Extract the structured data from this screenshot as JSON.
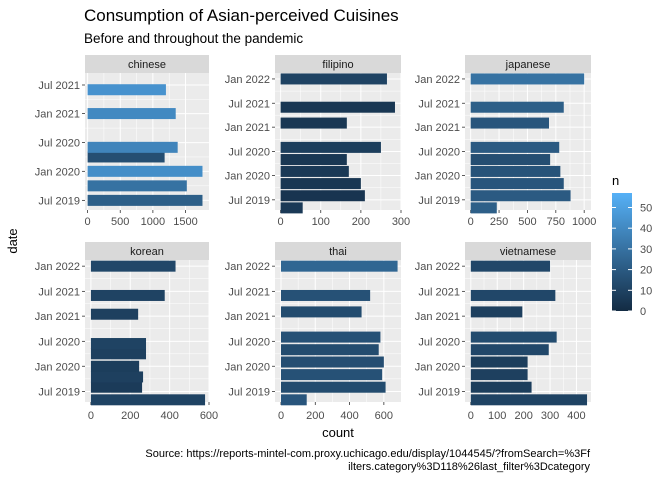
{
  "title": "Consumption of Asian-perceived Cuisines",
  "subtitle": "Before and throughout the pandemic",
  "caption_lines": [
    "Source: https://reports-mintel-com.proxy.uchicago.edu/display/1044545/?fromSearch=%3Ff",
    "ilters.category%3D118%26last_filter%3Dcategory"
  ],
  "colors": {
    "low": "#132B43",
    "high": "#56B1F7",
    "panel": "#EBEBEB",
    "grid": "#FFFFFF",
    "strip": "#D9D9D9"
  },
  "chart_data": {
    "type": "bar",
    "orientation": "horizontal",
    "facet_by": "cuisine",
    "facet_scales": "free",
    "xlabel": "count",
    "ylabel": "date",
    "fill_legend": {
      "title": "n",
      "range": [
        0,
        57
      ],
      "breaks": [
        0,
        10,
        20,
        30,
        40,
        50
      ]
    },
    "grid": true,
    "legend_position": "right",
    "panels": [
      {
        "name": "chinese",
        "xlim": [
          -40,
          1860
        ],
        "xticks": [
          0,
          500,
          1000,
          1500
        ],
        "ylim": [
          "2019-05-01",
          "2021-09-15"
        ],
        "yticks": [
          {
            "label": "Jul 2019",
            "date": "2019-07-01"
          },
          {
            "label": "Jan 2020",
            "date": "2020-01-01"
          },
          {
            "label": "Jul 2020",
            "date": "2020-07-01"
          },
          {
            "label": "Jan 2021",
            "date": "2021-01-01"
          },
          {
            "label": "Jul 2021",
            "date": "2021-07-01"
          }
        ],
        "bars": [
          {
            "date": "2019-07-01",
            "count": 1760,
            "n_mean": 22
          },
          {
            "date": "2019-10-01",
            "count": 1520,
            "n_mean": 30
          },
          {
            "date": "2020-01-01",
            "count": 1760,
            "n_mean": 42
          },
          {
            "date": "2020-04-01",
            "count": 1180,
            "n_mean": 15
          },
          {
            "date": "2020-06-01",
            "count": 1380,
            "n_mean": 38
          },
          {
            "date": "2021-01-01",
            "count": 1350,
            "n_mean": 40
          },
          {
            "date": "2021-06-01",
            "count": 1200,
            "n_mean": 44
          }
        ]
      },
      {
        "name": "filipino",
        "xlim": [
          -14,
          300
        ],
        "xticks": [
          0,
          100,
          200,
          300
        ],
        "ylim": [
          "2019-04-15",
          "2022-02-15"
        ],
        "yticks": [
          {
            "label": "Jul 2019",
            "date": "2019-07-01"
          },
          {
            "label": "Jan 2020",
            "date": "2020-01-01"
          },
          {
            "label": "Jul 2020",
            "date": "2020-07-01"
          },
          {
            "label": "Jan 2021",
            "date": "2021-01-01"
          },
          {
            "label": "Jul 2021",
            "date": "2021-07-01"
          },
          {
            "label": "Jan 2022",
            "date": "2022-01-01"
          }
        ],
        "bars": [
          {
            "date": "2019-05-01",
            "count": 55,
            "n_mean": 6
          },
          {
            "date": "2019-08-01",
            "count": 210,
            "n_mean": 4
          },
          {
            "date": "2019-11-01",
            "count": 200,
            "n_mean": 5
          },
          {
            "date": "2020-02-01",
            "count": 170,
            "n_mean": 6
          },
          {
            "date": "2020-05-01",
            "count": 165,
            "n_mean": 5
          },
          {
            "date": "2020-08-01",
            "count": 250,
            "n_mean": 8
          },
          {
            "date": "2021-02-01",
            "count": 165,
            "n_mean": 5
          },
          {
            "date": "2021-06-01",
            "count": 285,
            "n_mean": 5
          },
          {
            "date": "2022-01-01",
            "count": 265,
            "n_mean": 10
          }
        ]
      },
      {
        "name": "japanese",
        "xlim": [
          -50,
          1060
        ],
        "xticks": [
          0,
          250,
          500,
          750,
          1000
        ],
        "ylim": [
          "2019-04-15",
          "2022-02-15"
        ],
        "yticks": [
          {
            "label": "Jul 2019",
            "date": "2019-07-01"
          },
          {
            "label": "Jan 2020",
            "date": "2020-01-01"
          },
          {
            "label": "Jul 2020",
            "date": "2020-07-01"
          },
          {
            "label": "Jan 2021",
            "date": "2021-01-01"
          },
          {
            "label": "Jul 2021",
            "date": "2021-07-01"
          },
          {
            "label": "Jan 2022",
            "date": "2022-01-01"
          }
        ],
        "bars": [
          {
            "date": "2019-05-01",
            "count": 230,
            "n_mean": 22
          },
          {
            "date": "2019-08-01",
            "count": 880,
            "n_mean": 20
          },
          {
            "date": "2019-11-01",
            "count": 820,
            "n_mean": 18
          },
          {
            "date": "2020-02-01",
            "count": 790,
            "n_mean": 17
          },
          {
            "date": "2020-05-01",
            "count": 700,
            "n_mean": 15
          },
          {
            "date": "2020-08-01",
            "count": 780,
            "n_mean": 20
          },
          {
            "date": "2021-02-01",
            "count": 690,
            "n_mean": 18
          },
          {
            "date": "2021-06-01",
            "count": 820,
            "n_mean": 22
          },
          {
            "date": "2022-01-01",
            "count": 1000,
            "n_mean": 30
          }
        ]
      },
      {
        "name": "korean",
        "xlim": [
          -30,
          600
        ],
        "xticks": [
          0,
          200,
          400,
          600
        ],
        "ylim": [
          "2019-04-15",
          "2022-02-15"
        ],
        "yticks": [
          {
            "label": "Jul 2019",
            "date": "2019-07-01"
          },
          {
            "label": "Jan 2020",
            "date": "2020-01-01"
          },
          {
            "label": "Jul 2020",
            "date": "2020-07-01"
          },
          {
            "label": "Jan 2021",
            "date": "2021-01-01"
          },
          {
            "label": "Jul 2021",
            "date": "2021-07-01"
          },
          {
            "label": "Jan 2022",
            "date": "2022-01-01"
          }
        ],
        "bars": [
          {
            "date": "2019-05-01",
            "count": 580,
            "n_mean": 10
          },
          {
            "date": "2019-08-01",
            "count": 260,
            "n_mean": 7
          },
          {
            "date": "2019-10-15",
            "count": 265,
            "n_mean": 9
          },
          {
            "date": "2020-01-01",
            "count": 245,
            "n_mean": 8
          },
          {
            "date": "2020-04-01",
            "count": 280,
            "n_mean": 9
          },
          {
            "date": "2020-06-15",
            "count": 280,
            "n_mean": 10
          },
          {
            "date": "2021-01-15",
            "count": 240,
            "n_mean": 9
          },
          {
            "date": "2021-06-01",
            "count": 375,
            "n_mean": 10
          },
          {
            "date": "2022-01-01",
            "count": 430,
            "n_mean": 12
          }
        ]
      },
      {
        "name": "thai",
        "xlim": [
          -35,
          700
        ],
        "xticks": [
          0,
          200,
          400,
          600
        ],
        "ylim": [
          "2019-04-15",
          "2022-02-15"
        ],
        "yticks": [
          {
            "label": "Jul 2019",
            "date": "2019-07-01"
          },
          {
            "label": "Jan 2020",
            "date": "2020-01-01"
          },
          {
            "label": "Jul 2020",
            "date": "2020-07-01"
          },
          {
            "label": "Jan 2021",
            "date": "2021-01-01"
          },
          {
            "label": "Jul 2021",
            "date": "2021-07-01"
          },
          {
            "label": "Jan 2022",
            "date": "2022-01-01"
          }
        ],
        "bars": [
          {
            "date": "2019-05-01",
            "count": 150,
            "n_mean": 18
          },
          {
            "date": "2019-08-01",
            "count": 610,
            "n_mean": 14
          },
          {
            "date": "2019-11-01",
            "count": 590,
            "n_mean": 16
          },
          {
            "date": "2020-02-01",
            "count": 600,
            "n_mean": 15
          },
          {
            "date": "2020-05-01",
            "count": 570,
            "n_mean": 14
          },
          {
            "date": "2020-08-01",
            "count": 580,
            "n_mean": 16
          },
          {
            "date": "2021-02-01",
            "count": 470,
            "n_mean": 14
          },
          {
            "date": "2021-06-01",
            "count": 520,
            "n_mean": 16
          },
          {
            "date": "2022-01-01",
            "count": 680,
            "n_mean": 25
          }
        ]
      },
      {
        "name": "vietnamese",
        "xlim": [
          -22,
          455
        ],
        "xticks": [
          0,
          100,
          200,
          300,
          400
        ],
        "ylim": [
          "2019-04-15",
          "2022-02-15"
        ],
        "yticks": [
          {
            "label": "Jul 2019",
            "date": "2019-07-01"
          },
          {
            "label": "Jan 2020",
            "date": "2020-01-01"
          },
          {
            "label": "Jul 2020",
            "date": "2020-07-01"
          },
          {
            "label": "Jan 2021",
            "date": "2021-01-01"
          },
          {
            "label": "Jul 2021",
            "date": "2021-07-01"
          },
          {
            "label": "Jan 2022",
            "date": "2022-01-01"
          }
        ],
        "bars": [
          {
            "date": "2019-05-01",
            "count": 440,
            "n_mean": 10
          },
          {
            "date": "2019-08-01",
            "count": 230,
            "n_mean": 8
          },
          {
            "date": "2019-11-01",
            "count": 215,
            "n_mean": 9
          },
          {
            "date": "2020-02-01",
            "count": 215,
            "n_mean": 8
          },
          {
            "date": "2020-05-01",
            "count": 295,
            "n_mean": 12
          },
          {
            "date": "2020-08-01",
            "count": 325,
            "n_mean": 14
          },
          {
            "date": "2021-02-01",
            "count": 195,
            "n_mean": 9
          },
          {
            "date": "2021-06-01",
            "count": 320,
            "n_mean": 12
          },
          {
            "date": "2022-01-01",
            "count": 300,
            "n_mean": 12
          }
        ]
      }
    ]
  }
}
